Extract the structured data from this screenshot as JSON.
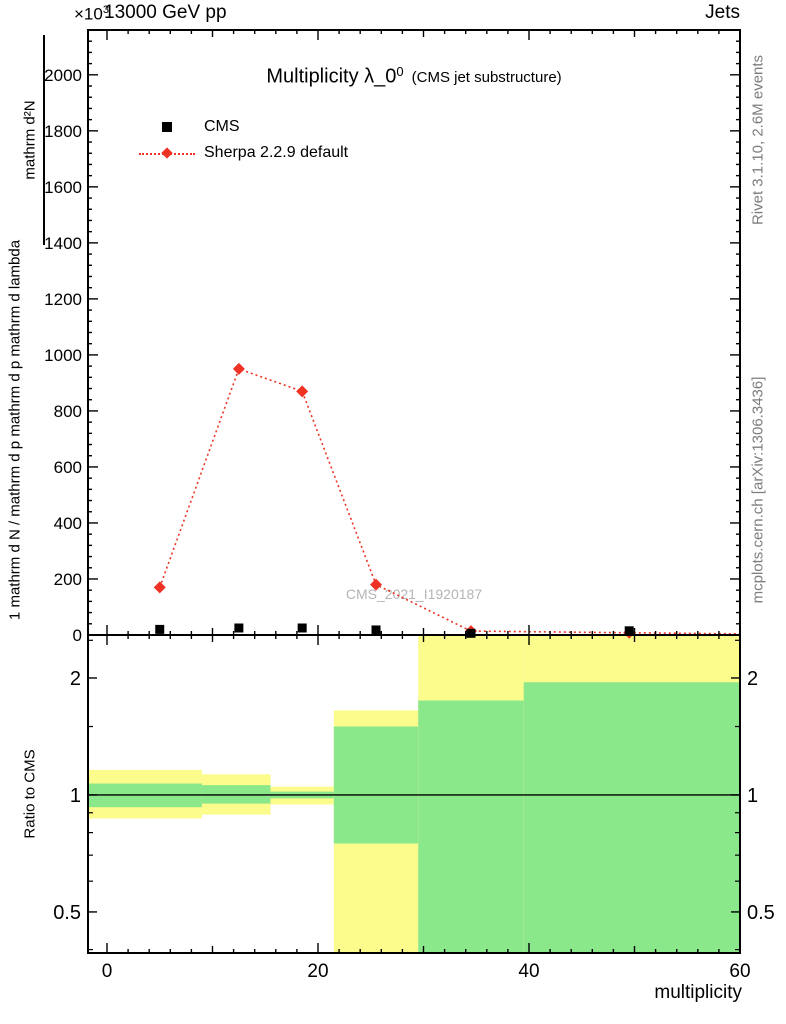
{
  "header": {
    "scale_factor": "×10",
    "scale_exp": "3",
    "energy": "13000 GeV pp",
    "topic": "Jets"
  },
  "plot": {
    "title_main": "Multiplicity λ_0",
    "title_sup": "0",
    "title_note": "(CMS jet substructure)",
    "watermark": "CMS_2021_I1920187",
    "ylabel_part1": "1  mathrm d N / mathrm d p  mathrm d p  mathrm d lambda",
    "ylabel_part2": "mathrm d²N",
    "ratio_ylabel": "Ratio to CMS",
    "xlabel": "multiplicity"
  },
  "legend": {
    "items": [
      {
        "label": "CMS",
        "marker": "black-square"
      },
      {
        "label": "Sherpa 2.2.9 default",
        "marker": "red-diamond-dotted-line"
      }
    ]
  },
  "sidebar": {
    "rivet": "Rivet 3.1.10,  2.6M events",
    "mcplots": "mcplots.cern.ch [arXiv:1306.3436]"
  },
  "colors": {
    "sherpa_red": "#ee3324",
    "band_yellow": "#fcfc8d",
    "band_green": "#8ae78a",
    "watermark_gray": "#b5b5b5",
    "side_text_gray": "#7d7d7d"
  },
  "chart_data": {
    "type": "line",
    "title": "Multiplicity λ_0^0 (CMS jet substructure)",
    "xlabel": "multiplicity",
    "xlim": [
      -1.8,
      60
    ],
    "xticks": [
      0,
      20,
      40,
      60
    ],
    "main_panel": {
      "ylim": [
        0,
        2160
      ],
      "yticks": [
        0,
        200,
        400,
        600,
        800,
        1000,
        1200,
        1400,
        1600,
        1800,
        2000
      ],
      "scale_note": "y values in units of 10^3",
      "series": [
        {
          "name": "CMS",
          "marker": "square",
          "color": "#000000",
          "x": [
            5,
            12.5,
            18.5,
            25.5,
            34.5,
            49.5
          ],
          "y": [
            20,
            25,
            25,
            18,
            6,
            15
          ]
        },
        {
          "name": "Sherpa 2.2.9 default",
          "marker": "diamond",
          "linestyle": "dotted",
          "color": "#ee3324",
          "x": [
            5,
            12.5,
            18.5,
            25.5,
            34.5,
            49.5
          ],
          "y": [
            170,
            950,
            870,
            180,
            14,
            8
          ],
          "line_extra_x": 60,
          "line_extra_y": 4
        }
      ]
    },
    "ratio_panel": {
      "ylabel": "Ratio to CMS",
      "yscale": "log",
      "ylim": [
        0.392,
        2.58
      ],
      "yticks": [
        0.5,
        1,
        2
      ],
      "minor_yticks": [
        0.4,
        0.6,
        0.7,
        0.8,
        0.9,
        1.5,
        2.5
      ],
      "reference_line": 1,
      "bands": [
        {
          "x0": -1.8,
          "x1": 9,
          "yellow_lo": 0.87,
          "yellow_hi": 1.16,
          "green_lo": 0.93,
          "green_hi": 1.07
        },
        {
          "x0": 9,
          "x1": 15.5,
          "yellow_lo": 0.89,
          "yellow_hi": 1.13,
          "green_lo": 0.95,
          "green_hi": 1.06
        },
        {
          "x0": 15.5,
          "x1": 21.5,
          "yellow_lo": 0.945,
          "yellow_hi": 1.05,
          "green_lo": 0.98,
          "green_hi": 1.02
        },
        {
          "x0": 21.5,
          "x1": 29.5,
          "yellow_lo": 0.33,
          "yellow_hi": 1.65,
          "green_lo": 0.75,
          "green_hi": 1.5
        },
        {
          "x0": 29.5,
          "x1": 39.5,
          "yellow_lo": 0.33,
          "yellow_hi": 2.7,
          "green_lo": 0.33,
          "green_hi": 1.75
        },
        {
          "x0": 39.5,
          "x1": 60,
          "yellow_lo": 0.33,
          "yellow_hi": 2.7,
          "green_lo": 0.33,
          "green_hi": 1.95
        }
      ]
    }
  }
}
